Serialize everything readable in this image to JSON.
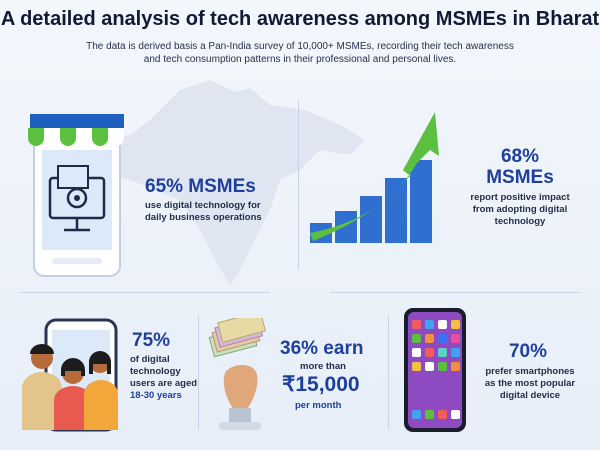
{
  "header": {
    "title": "A detailed analysis of tech awareness among MSMEs in Bharat",
    "subtitle_line1": "The data is derived basis a Pan-India survey of 10,000+ MSMEs, recording their tech awareness",
    "subtitle_line2": "and tech consumption patterns in their professional and personal lives."
  },
  "stats": {
    "digital_ops": {
      "headline": "65% MSMEs",
      "line1": "use digital technology for",
      "line2": "daily business operations",
      "icon": "store-computer-icon"
    },
    "positive_impact": {
      "headline1": "68%",
      "headline2": "MSMEs",
      "line1": "report positive impact",
      "line2": "from adopting digital",
      "line3": "technology",
      "icon": "growth-chart-icon"
    },
    "young_users": {
      "headline": "75%",
      "line1": "of digital",
      "line2": "technology",
      "line3": "users are aged",
      "line4": "18-30 years",
      "icon": "people-phone-icon"
    },
    "earnings": {
      "headline": "36% earn",
      "line1": "more than",
      "amount": "₹15,000",
      "line2": "per month",
      "icon": "money-hand-icon"
    },
    "smartphones": {
      "headline": "70%",
      "line1": "prefer smartphones",
      "line2": "as the most popular",
      "line3": "digital device",
      "icon": "smartphone-icon"
    }
  },
  "colors": {
    "accent": "#1e3f9a",
    "green": "#5bbf3f",
    "blue_bar": "#1f5fbf"
  }
}
